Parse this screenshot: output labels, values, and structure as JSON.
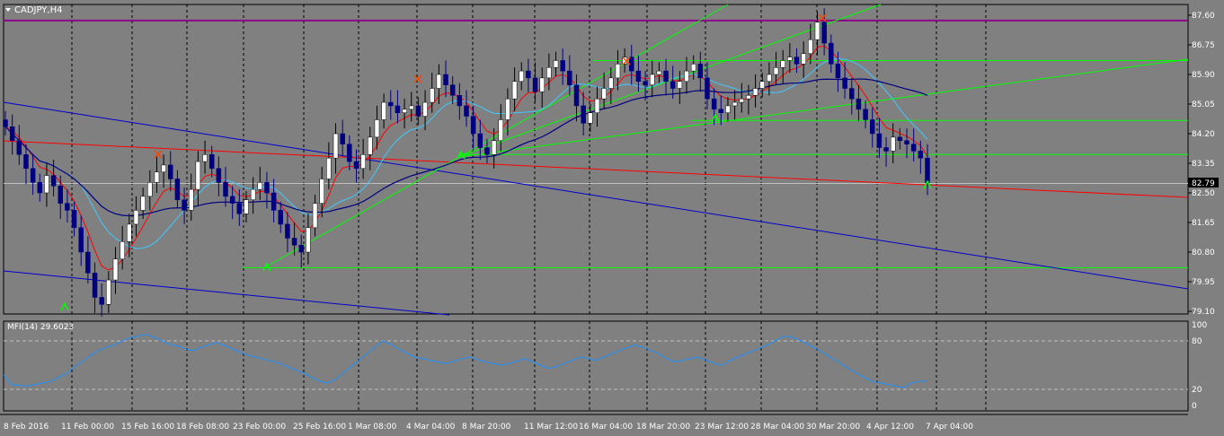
{
  "chart_window": {
    "symbol_title": "CADJPY,H4",
    "indicator_title": "MFI(14) 29.6023",
    "current_price_label": "82.79"
  },
  "colors": {
    "background": "#808080",
    "bull_candle": "#ffffff",
    "bear_candle": "#000080",
    "ema_fast": "#ff0000",
    "ema_slow": "#40c8ff",
    "sma_long": "#000080",
    "trendline_green": "#00ff00",
    "trendline_blue": "#0000cd",
    "trendline_red": "#ff0000",
    "resistance_magenta": "#8b008b",
    "mfi_line": "#1e90ff"
  },
  "chart_data": [
    {
      "type": "candlestick",
      "title": "CADJPY,H4",
      "ylim": [
        79.1,
        87.6
      ],
      "y_ticks": [
        "87.60",
        "86.75",
        "85.90",
        "85.05",
        "84.20",
        "83.35",
        "82.50",
        "81.65",
        "80.80",
        "79.95",
        "79.10"
      ],
      "x_ticks": [
        "8 Feb 2016",
        "11 Feb 00:00",
        "15 Feb 16:00",
        "18 Feb 08:00",
        "23 Feb 00:00",
        "25 Feb 16:00",
        "1 Mar 08:00",
        "4 Mar 04:00",
        "8 Mar 20:00",
        "11 Mar 12:00",
        "16 Mar 04:00",
        "18 Mar 20:00",
        "23 Mar 12:00",
        "28 Mar 04:00",
        "30 Mar 20:00",
        "4 Apr 12:00",
        "7 Apr 04:00"
      ],
      "last_price": 82.79,
      "horizontal_levels": [
        87.45,
        86.3,
        84.58,
        83.6,
        80.35
      ],
      "approx_closes": [
        84.4,
        84.0,
        83.6,
        83.2,
        82.8,
        82.5,
        83.0,
        82.7,
        82.2,
        82.0,
        81.5,
        80.8,
        80.2,
        79.5,
        79.3,
        80.0,
        80.6,
        81.1,
        81.6,
        82.0,
        82.4,
        82.8,
        83.1,
        83.3,
        82.9,
        82.3,
        82.0,
        82.6,
        83.4,
        83.6,
        83.2,
        82.8,
        82.4,
        82.2,
        81.9,
        82.3,
        82.6,
        82.8,
        82.5,
        82.0,
        81.6,
        81.2,
        81.0,
        80.8,
        81.5,
        82.2,
        82.9,
        83.5,
        84.2,
        83.9,
        83.4,
        83.2,
        83.6,
        84.1,
        84.6,
        85.1,
        85.0,
        84.8,
        84.9,
        85.0,
        84.7,
        85.1,
        85.5,
        85.9,
        85.6,
        85.3,
        85.0,
        84.7,
        84.2,
        83.8,
        83.6,
        84.0,
        84.6,
        85.2,
        85.7,
        86.0,
        85.8,
        85.4,
        85.8,
        86.1,
        86.3,
        86.0,
        85.6,
        85.0,
        84.5,
        84.8,
        85.2,
        85.5,
        85.8,
        86.2,
        86.4,
        86.0,
        85.7,
        85.6,
        85.9,
        86.0,
        85.7,
        85.5,
        85.7,
        86.0,
        86.2,
        85.8,
        85.2,
        84.9,
        84.8,
        85.0,
        85.1,
        85.2,
        85.3,
        85.5,
        85.7,
        85.9,
        86.1,
        86.3,
        86.4,
        86.2,
        86.5,
        86.9,
        87.4,
        86.8,
        86.2,
        85.8,
        85.5,
        85.2,
        84.9,
        84.6,
        84.2,
        83.8,
        83.7,
        84.1,
        84.0,
        83.9,
        83.7,
        83.5,
        82.79
      ]
    },
    {
      "type": "line",
      "title": "MFI(14) 29.6023",
      "ylim": [
        0,
        100
      ],
      "y_ticks": [
        "100",
        "80",
        "20",
        "0"
      ],
      "levels": [
        80,
        20
      ],
      "approx_values": [
        38,
        26,
        25,
        24,
        26,
        28,
        30,
        35,
        40,
        48,
        55,
        62,
        68,
        72,
        75,
        80,
        84,
        86,
        88,
        85,
        80,
        76,
        74,
        70,
        68,
        72,
        75,
        78,
        74,
        70,
        66,
        62,
        60,
        57,
        55,
        52,
        48,
        44,
        40,
        35,
        30,
        28,
        32,
        40,
        48,
        56,
        64,
        72,
        80,
        76,
        70,
        65,
        60,
        58,
        56,
        54,
        52,
        55,
        58,
        60,
        57,
        54,
        52,
        50,
        52,
        55,
        58,
        54,
        50,
        46,
        48,
        52,
        56,
        60,
        58,
        56,
        60,
        64,
        68,
        72,
        75,
        72,
        68,
        64,
        58,
        54,
        56,
        58,
        60,
        56,
        52,
        50,
        56,
        60,
        64,
        68,
        72,
        76,
        82,
        86,
        84,
        80,
        75,
        70,
        64,
        58,
        52,
        46,
        40,
        35,
        30,
        28,
        26,
        24,
        22,
        28,
        30,
        30
      ]
    }
  ]
}
